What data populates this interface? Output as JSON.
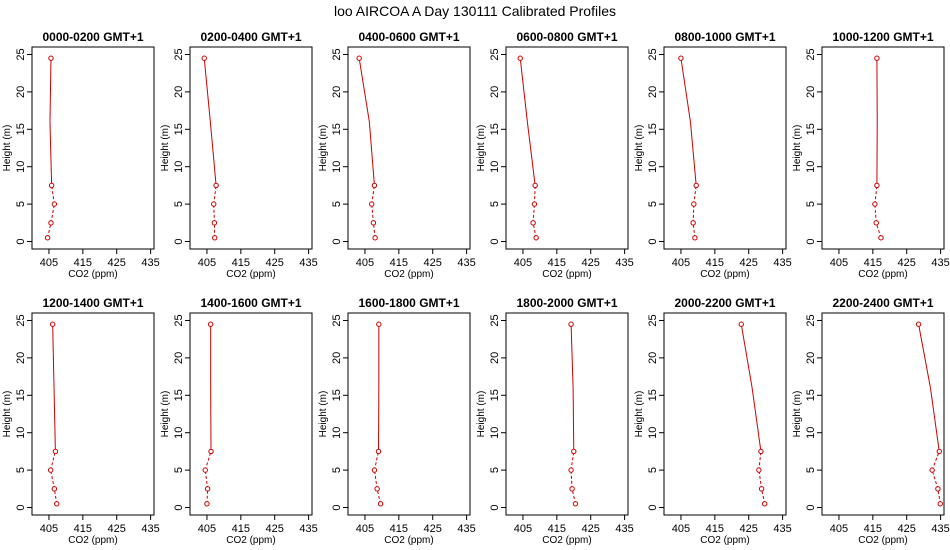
{
  "figure_title": "loo AIRCOA A  Day 130111  Calibrated Profiles",
  "colors": {
    "profile": "#cc0000",
    "axis": "#000000",
    "background": "#ffffff"
  },
  "chart_data": [
    {
      "type": "line",
      "title": "0000-0200 GMT+1",
      "xlabel": "CO2 (ppm)",
      "ylabel": "Height (m)",
      "xlim": [
        400,
        436
      ],
      "ylim": [
        -1,
        26
      ],
      "xticks": [
        405,
        415,
        425,
        435
      ],
      "yticks": [
        0,
        5,
        10,
        15,
        20,
        25
      ],
      "series": [
        {
          "x": [
            404.6,
            405.6,
            406.6,
            405.8,
            405.3,
            405.6
          ],
          "y": [
            0.5,
            2.5,
            5,
            7.5,
            16,
            24.5
          ]
        }
      ]
    },
    {
      "type": "line",
      "title": "0200-0400 GMT+1",
      "xlabel": "CO2 (ppm)",
      "ylabel": "Height (m)",
      "xlim": [
        400,
        436
      ],
      "ylim": [
        -1,
        26
      ],
      "xticks": [
        405,
        415,
        425,
        435
      ],
      "yticks": [
        0,
        5,
        10,
        15,
        20,
        25
      ],
      "series": [
        {
          "x": [
            407.3,
            407.2,
            407.0,
            407.7,
            406.0,
            404.2
          ],
          "y": [
            0.5,
            2.5,
            5,
            7.5,
            16,
            24.5
          ]
        }
      ]
    },
    {
      "type": "line",
      "title": "0400-0600 GMT+1",
      "xlabel": "CO2 (ppm)",
      "ylabel": "Height (m)",
      "xlim": [
        400,
        436
      ],
      "ylim": [
        -1,
        26
      ],
      "xticks": [
        405,
        415,
        425,
        435
      ],
      "yticks": [
        0,
        5,
        10,
        15,
        20,
        25
      ],
      "series": [
        {
          "x": [
            408.0,
            407.5,
            407.0,
            407.8,
            406.3,
            403.3
          ],
          "y": [
            0.5,
            2.5,
            5,
            7.5,
            16,
            24.5
          ]
        }
      ]
    },
    {
      "type": "line",
      "title": "0600-0800 GMT+1",
      "xlabel": "CO2 (ppm)",
      "ylabel": "Height (m)",
      "xlim": [
        400,
        436
      ],
      "ylim": [
        -1,
        26
      ],
      "xticks": [
        405,
        415,
        425,
        435
      ],
      "yticks": [
        0,
        5,
        10,
        15,
        20,
        25
      ],
      "series": [
        {
          "x": [
            408.9,
            408.0,
            408.4,
            408.6,
            406.3,
            404.2
          ],
          "y": [
            0.5,
            2.5,
            5,
            7.5,
            16,
            24.5
          ]
        }
      ]
    },
    {
      "type": "line",
      "title": "0800-1000 GMT+1",
      "xlabel": "CO2 (ppm)",
      "ylabel": "Height (m)",
      "xlim": [
        400,
        436
      ],
      "ylim": [
        -1,
        26
      ],
      "xticks": [
        405,
        415,
        425,
        435
      ],
      "yticks": [
        0,
        5,
        10,
        15,
        20,
        25
      ],
      "series": [
        {
          "x": [
            409.1,
            408.6,
            408.8,
            409.5,
            407.8,
            405.0
          ],
          "y": [
            0.5,
            2.5,
            5,
            7.5,
            16,
            24.5
          ]
        }
      ]
    },
    {
      "type": "line",
      "title": "1000-1200 GMT+1",
      "xlabel": "CO2 (ppm)",
      "ylabel": "Height (m)",
      "xlim": [
        400,
        436
      ],
      "ylim": [
        -1,
        26
      ],
      "xticks": [
        405,
        415,
        425,
        435
      ],
      "yticks": [
        0,
        5,
        10,
        15,
        20,
        25
      ],
      "series": [
        {
          "x": [
            417.4,
            416.0,
            415.6,
            416.2,
            416.3,
            416.2
          ],
          "y": [
            0.5,
            2.5,
            5,
            7.5,
            16,
            24.5
          ]
        }
      ]
    },
    {
      "type": "line",
      "title": "1200-1400 GMT+1",
      "xlabel": "CO2 (ppm)",
      "ylabel": "Height (m)",
      "xlim": [
        400,
        436
      ],
      "ylim": [
        -1,
        26
      ],
      "xticks": [
        405,
        415,
        425,
        435
      ],
      "yticks": [
        0,
        5,
        10,
        15,
        20,
        25
      ],
      "series": [
        {
          "x": [
            407.3,
            406.6,
            405.5,
            406.9,
            406.5,
            406.1
          ],
          "y": [
            0.5,
            2.5,
            5,
            7.5,
            16,
            24.5
          ]
        }
      ]
    },
    {
      "type": "line",
      "title": "1400-1600 GMT+1",
      "xlabel": "CO2 (ppm)",
      "ylabel": "Height (m)",
      "xlim": [
        400,
        436
      ],
      "ylim": [
        -1,
        26
      ],
      "xticks": [
        405,
        415,
        425,
        435
      ],
      "yticks": [
        0,
        5,
        10,
        15,
        20,
        25
      ],
      "series": [
        {
          "x": [
            405.0,
            405.2,
            404.5,
            406.2,
            406.1,
            406.1
          ],
          "y": [
            0.5,
            2.5,
            5,
            7.5,
            16,
            24.5
          ]
        }
      ]
    },
    {
      "type": "line",
      "title": "1600-1800 GMT+1",
      "xlabel": "CO2 (ppm)",
      "ylabel": "Height (m)",
      "xlim": [
        400,
        436
      ],
      "ylim": [
        -1,
        26
      ],
      "xticks": [
        405,
        415,
        425,
        435
      ],
      "yticks": [
        0,
        5,
        10,
        15,
        20,
        25
      ],
      "series": [
        {
          "x": [
            409.6,
            408.6,
            407.8,
            409.0,
            409.1,
            409.1
          ],
          "y": [
            0.5,
            2.5,
            5,
            7.5,
            16,
            24.5
          ]
        }
      ]
    },
    {
      "type": "line",
      "title": "1800-2000 GMT+1",
      "xlabel": "CO2 (ppm)",
      "ylabel": "Height (m)",
      "xlim": [
        400,
        436
      ],
      "ylim": [
        -1,
        26
      ],
      "xticks": [
        405,
        415,
        425,
        435
      ],
      "yticks": [
        0,
        5,
        10,
        15,
        20,
        25
      ],
      "series": [
        {
          "x": [
            420.5,
            419.5,
            419.2,
            420.0,
            419.8,
            419.2
          ],
          "y": [
            0.5,
            2.5,
            5,
            7.5,
            16,
            24.5
          ]
        }
      ]
    },
    {
      "type": "line",
      "title": "2000-2200 GMT+1",
      "xlabel": "CO2 (ppm)",
      "ylabel": "Height (m)",
      "xlim": [
        400,
        436
      ],
      "ylim": [
        -1,
        26
      ],
      "xticks": [
        405,
        415,
        425,
        435
      ],
      "yticks": [
        0,
        5,
        10,
        15,
        20,
        25
      ],
      "series": [
        {
          "x": [
            429.7,
            428.8,
            428.0,
            428.6,
            426.0,
            422.8
          ],
          "y": [
            0.5,
            2.5,
            5,
            7.5,
            16,
            24.5
          ]
        }
      ]
    },
    {
      "type": "line",
      "title": "2200-2400 GMT+1",
      "xlabel": "CO2 (ppm)",
      "ylabel": "Height (m)",
      "xlim": [
        400,
        436
      ],
      "ylim": [
        -1,
        26
      ],
      "xticks": [
        405,
        415,
        425,
        435
      ],
      "yticks": [
        0,
        5,
        10,
        15,
        20,
        25
      ],
      "series": [
        {
          "x": [
            434.9,
            434.2,
            432.5,
            434.6,
            432.0,
            428.5
          ],
          "y": [
            0.5,
            2.5,
            5,
            7.5,
            16,
            24.5
          ]
        }
      ]
    }
  ]
}
